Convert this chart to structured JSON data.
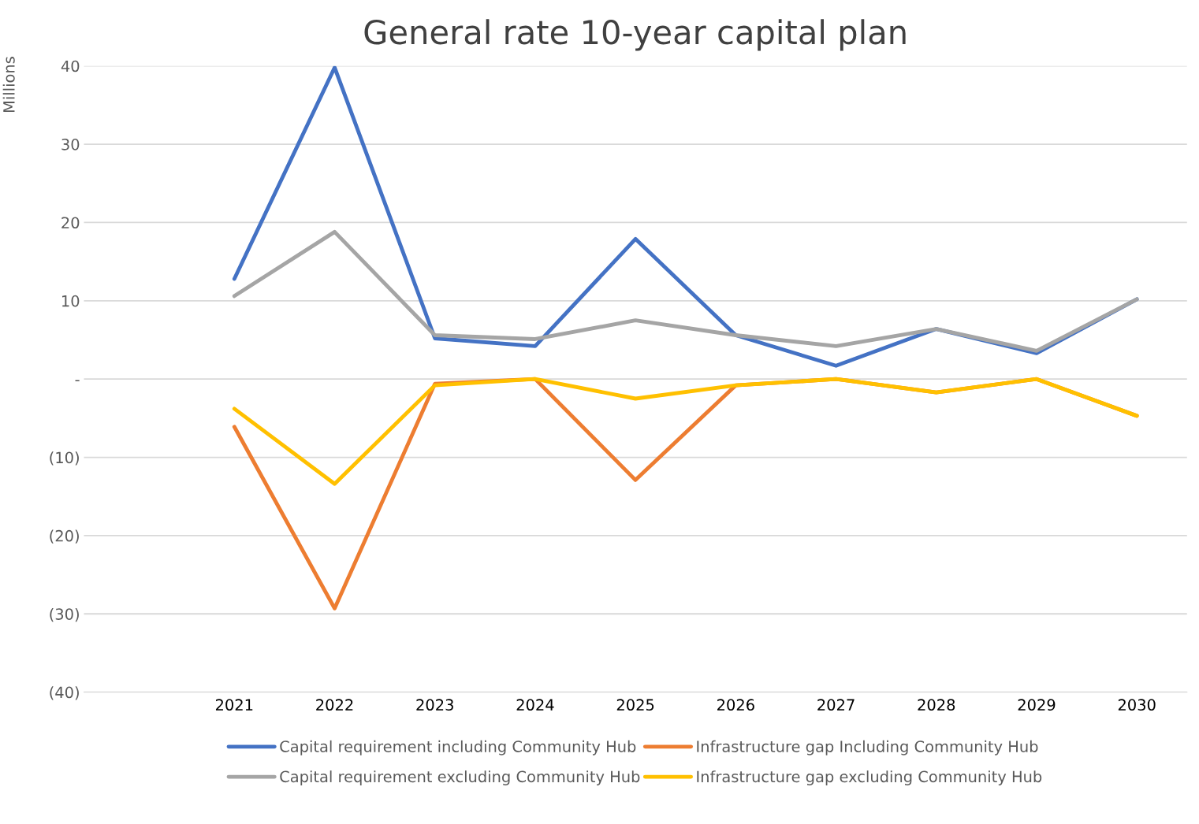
{
  "chart_data": {
    "type": "line",
    "title": "General rate 10-year capital plan",
    "ylabel": "Millions",
    "categories": [
      null,
      "2021",
      "2022",
      "2023",
      "2024",
      "2025",
      "2026",
      "2027",
      "2028",
      "2029",
      "2030"
    ],
    "series": [
      {
        "name": "Capital requirement including Community Hub",
        "color": "#4472c4",
        "values": [
          null,
          12.8,
          39.8,
          5.2,
          4.2,
          17.9,
          5.6,
          1.7,
          6.4,
          3.3,
          10.2
        ]
      },
      {
        "name": "Infrastructure gap Including Community Hub",
        "color": "#ed7d31",
        "values": [
          null,
          -6.1,
          -29.3,
          -0.6,
          0,
          -12.9,
          -0.8,
          0,
          -1.7,
          0,
          -4.7
        ]
      },
      {
        "name": "Capital requirement excluding Community Hub",
        "color": "#a5a5a5",
        "values": [
          null,
          10.6,
          18.8,
          5.6,
          5.1,
          7.5,
          5.6,
          4.2,
          6.4,
          3.6,
          10.2
        ]
      },
      {
        "name": "Infrastructure gap excluding Community Hub",
        "color": "#ffc000",
        "values": [
          null,
          -3.8,
          -13.4,
          -0.8,
          0,
          -2.5,
          -0.8,
          0,
          -1.7,
          0,
          -4.7
        ]
      }
    ],
    "ylim": [
      -40,
      40
    ],
    "yticks": [
      40,
      30,
      20,
      10,
      {
        "value": 0,
        "label": "-"
      },
      {
        "value": -10,
        "label": "(10)"
      },
      {
        "value": -20,
        "label": "(20)"
      },
      {
        "value": -30,
        "label": "(30)"
      },
      {
        "value": -40,
        "label": "(40)"
      }
    ],
    "grid": "y",
    "legend": "bottom",
    "marker": "none",
    "line_style": "solid"
  }
}
